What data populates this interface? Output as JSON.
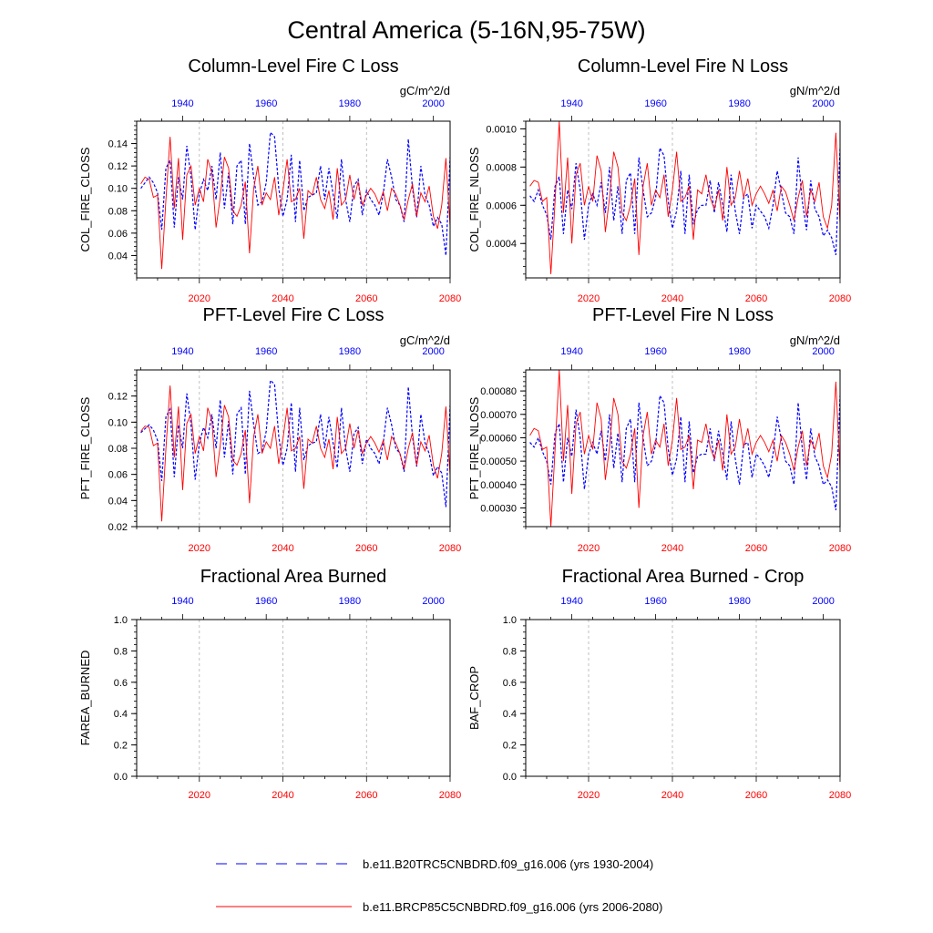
{
  "figure_title": "Central America (5-16N,95-75W)",
  "legend": [
    {
      "label": "b.e11.B20TRC5CNBDRD.f09_g16.006 (yrs 1930-2004)",
      "color": "#0000ff",
      "style": "dashed"
    },
    {
      "label": "b.e11.BRCP85C5CNBDRD.f09_g16.006 (yrs 2006-2080)",
      "color": "#ff0000",
      "style": "solid"
    }
  ],
  "chart_data": [
    {
      "type": "line",
      "title": "Column-Level Fire C Loss",
      "ylabel": "COL_FIRE_CLOSS",
      "units": "gC/m^2/d",
      "bottom_axis": {
        "range": [
          2005,
          2080
        ],
        "ticks": [
          "2020",
          "2040",
          "2060",
          "2080"
        ],
        "color": "#ff0000"
      },
      "top_axis": {
        "range": [
          1929,
          2004
        ],
        "ticks": [
          "1940",
          "1960",
          "1980",
          "2000"
        ],
        "color": "#0000ff"
      },
      "ylim": [
        0.02,
        0.16
      ],
      "yticks": [
        "0.04",
        "0.06",
        "0.08",
        "0.10",
        "0.12",
        "0.14"
      ],
      "series": [
        {
          "name": "b.e11.B20TRC5CNBDRD.f09_g16.006",
          "color": "#0000ff",
          "dash": true,
          "start": 1930,
          "values": [
            0.1,
            0.105,
            0.11,
            0.105,
            0.096,
            0.063,
            0.118,
            0.125,
            0.065,
            0.11,
            0.09,
            0.138,
            0.11,
            0.063,
            0.095,
            0.108,
            0.098,
            0.12,
            0.09,
            0.132,
            0.082,
            0.114,
            0.068,
            0.12,
            0.125,
            0.068,
            0.14,
            0.11,
            0.085,
            0.088,
            0.105,
            0.15,
            0.146,
            0.1,
            0.075,
            0.09,
            0.13,
            0.07,
            0.125,
            0.08,
            0.092,
            0.094,
            0.096,
            0.12,
            0.09,
            0.118,
            0.095,
            0.073,
            0.126,
            0.09,
            0.07,
            0.102,
            0.108,
            0.076,
            0.098,
            0.09,
            0.085,
            0.076,
            0.095,
            0.126,
            0.11,
            0.09,
            0.085,
            0.07,
            0.144,
            0.1,
            0.074,
            0.12,
            0.094,
            0.085,
            0.066,
            0.074,
            0.068,
            0.04,
            0.128
          ]
        },
        {
          "name": "b.e11.BRCP85C5CNBDRD.f09_g16.006",
          "color": "#ff0000",
          "dash": false,
          "start": 2006,
          "values": [
            0.104,
            0.11,
            0.108,
            0.092,
            0.094,
            0.028,
            0.09,
            0.146,
            0.082,
            0.127,
            0.054,
            0.112,
            0.12,
            0.085,
            0.1,
            0.088,
            0.126,
            0.114,
            0.065,
            0.092,
            0.128,
            0.118,
            0.08,
            0.075,
            0.085,
            0.106,
            0.042,
            0.1,
            0.12,
            0.085,
            0.096,
            0.09,
            0.11,
            0.076,
            0.098,
            0.126,
            0.088,
            0.09,
            0.1,
            0.055,
            0.098,
            0.094,
            0.11,
            0.09,
            0.082,
            0.098,
            0.072,
            0.118,
            0.085,
            0.09,
            0.112,
            0.09,
            0.106,
            0.085,
            0.094,
            0.1,
            0.095,
            0.086,
            0.097,
            0.08,
            0.1,
            0.095,
            0.085,
            0.072,
            0.09,
            0.104,
            0.075,
            0.096,
            0.088,
            0.102,
            0.075,
            0.064,
            0.085,
            0.127,
            0.066
          ]
        }
      ]
    },
    {
      "type": "line",
      "title": "Column-Level Fire N Loss",
      "ylabel": "COL_FIRE_NLOSS",
      "units": "gN/m^2/d",
      "bottom_axis": {
        "range": [
          2005,
          2080
        ],
        "ticks": [
          "2020",
          "2040",
          "2060",
          "2080"
        ],
        "color": "#ff0000"
      },
      "top_axis": {
        "range": [
          1929,
          2004
        ],
        "ticks": [
          "1940",
          "1960",
          "1980",
          "2000"
        ],
        "color": "#0000ff"
      },
      "ylim": [
        0.00022,
        0.00104
      ],
      "yticks": [
        "0.0004",
        "0.0006",
        "0.0008",
        "0.0010"
      ],
      "series": [
        {
          "name": "b.e11.B20TRC5CNBDRD.f09_g16.006",
          "color": "#0000ff",
          "dash": true,
          "start": 1930,
          "values": [
            0.00065,
            0.00062,
            0.00068,
            0.0006,
            0.00055,
            0.00042,
            0.0007,
            0.00075,
            0.00045,
            0.00068,
            0.00058,
            0.00082,
            0.00068,
            0.00042,
            0.0006,
            0.00066,
            0.0006,
            0.00072,
            0.00056,
            0.0008,
            0.00052,
            0.0007,
            0.00045,
            0.00073,
            0.00077,
            0.00045,
            0.00085,
            0.00068,
            0.00054,
            0.00056,
            0.00064,
            0.0009,
            0.00086,
            0.00062,
            0.00048,
            0.00057,
            0.00078,
            0.00045,
            0.00076,
            0.0005,
            0.00058,
            0.0006,
            0.0006,
            0.00073,
            0.00056,
            0.00072,
            0.0006,
            0.00046,
            0.00076,
            0.00057,
            0.00045,
            0.00064,
            0.00066,
            0.00048,
            0.0006,
            0.00057,
            0.00054,
            0.00048,
            0.0006,
            0.00078,
            0.00067,
            0.00056,
            0.00054,
            0.00045,
            0.00085,
            0.00062,
            0.00047,
            0.00073,
            0.00058,
            0.00054,
            0.00044,
            0.00047,
            0.00043,
            0.00034,
            0.0009
          ]
        },
        {
          "name": "b.e11.BRCP85C5CNBDRD.f09_g16.006",
          "color": "#ff0000",
          "dash": false,
          "start": 2006,
          "values": [
            0.0007,
            0.00073,
            0.00072,
            0.00062,
            0.00064,
            0.00024,
            0.00062,
            0.00104,
            0.00056,
            0.00085,
            0.0004,
            0.00076,
            0.00082,
            0.0006,
            0.0007,
            0.00062,
            0.00086,
            0.00078,
            0.00046,
            0.00064,
            0.00088,
            0.0008,
            0.00056,
            0.00052,
            0.0006,
            0.00074,
            0.00034,
            0.0007,
            0.00082,
            0.0006,
            0.00068,
            0.00064,
            0.00076,
            0.00054,
            0.00068,
            0.00088,
            0.00062,
            0.00064,
            0.0007,
            0.00042,
            0.00068,
            0.00066,
            0.00076,
            0.00064,
            0.00058,
            0.00068,
            0.00052,
            0.0008,
            0.0006,
            0.00064,
            0.00078,
            0.00064,
            0.00074,
            0.0006,
            0.00066,
            0.0007,
            0.00066,
            0.00061,
            0.00068,
            0.00057,
            0.0007,
            0.00067,
            0.0006,
            0.00052,
            0.00064,
            0.00073,
            0.00054,
            0.00068,
            0.00062,
            0.00072,
            0.00054,
            0.00048,
            0.0006,
            0.00098,
            0.0005
          ]
        }
      ]
    },
    {
      "type": "line",
      "title": "PFT-Level Fire C Loss",
      "ylabel": "PFT_FIRE_CLOSS",
      "units": "gC/m^2/d",
      "bottom_axis": {
        "range": [
          2005,
          2080
        ],
        "ticks": [
          "2020",
          "2040",
          "2060",
          "2080"
        ],
        "color": "#ff0000"
      },
      "top_axis": {
        "range": [
          1929,
          2004
        ],
        "ticks": [
          "1940",
          "1960",
          "1980",
          "2000"
        ],
        "color": "#0000ff"
      },
      "ylim": [
        0.02,
        0.14
      ],
      "yticks": [
        "0.02",
        "0.04",
        "0.06",
        "0.08",
        "0.10",
        "0.12"
      ],
      "series": [
        {
          "name": "b.e11.B20TRC5CNBDRD.f09_g16.006",
          "color": "#0000ff",
          "dash": true,
          "start": 1930,
          "values": [
            0.092,
            0.095,
            0.098,
            0.094,
            0.086,
            0.055,
            0.104,
            0.11,
            0.058,
            0.098,
            0.08,
            0.122,
            0.098,
            0.056,
            0.084,
            0.096,
            0.088,
            0.106,
            0.08,
            0.117,
            0.073,
            0.101,
            0.06,
            0.106,
            0.111,
            0.06,
            0.124,
            0.098,
            0.076,
            0.078,
            0.093,
            0.132,
            0.129,
            0.089,
            0.067,
            0.08,
            0.115,
            0.062,
            0.111,
            0.071,
            0.082,
            0.084,
            0.085,
            0.106,
            0.08,
            0.104,
            0.084,
            0.065,
            0.111,
            0.08,
            0.062,
            0.091,
            0.096,
            0.068,
            0.087,
            0.08,
            0.076,
            0.068,
            0.084,
            0.111,
            0.098,
            0.08,
            0.076,
            0.062,
            0.127,
            0.089,
            0.066,
            0.106,
            0.084,
            0.076,
            0.059,
            0.066,
            0.061,
            0.035,
            0.113
          ]
        },
        {
          "name": "b.e11.BRCP85C5CNBDRD.f09_g16.006",
          "color": "#ff0000",
          "dash": false,
          "start": 2006,
          "values": [
            0.093,
            0.097,
            0.096,
            0.082,
            0.084,
            0.024,
            0.08,
            0.128,
            0.073,
            0.112,
            0.048,
            0.099,
            0.106,
            0.076,
            0.089,
            0.078,
            0.111,
            0.101,
            0.058,
            0.082,
            0.113,
            0.104,
            0.071,
            0.067,
            0.076,
            0.094,
            0.038,
            0.089,
            0.106,
            0.076,
            0.085,
            0.08,
            0.097,
            0.068,
            0.087,
            0.111,
            0.078,
            0.08,
            0.089,
            0.049,
            0.087,
            0.084,
            0.097,
            0.08,
            0.073,
            0.087,
            0.064,
            0.104,
            0.076,
            0.08,
            0.099,
            0.08,
            0.094,
            0.076,
            0.084,
            0.089,
            0.084,
            0.077,
            0.086,
            0.071,
            0.089,
            0.084,
            0.076,
            0.064,
            0.08,
            0.092,
            0.067,
            0.085,
            0.078,
            0.09,
            0.067,
            0.057,
            0.076,
            0.112,
            0.059
          ]
        }
      ]
    },
    {
      "type": "line",
      "title": "PFT-Level Fire N Loss",
      "ylabel": "PFT_FIRE_NLOSS",
      "units": "gN/m^2/d",
      "bottom_axis": {
        "range": [
          2005,
          2080
        ],
        "ticks": [
          "2020",
          "2040",
          "2060",
          "2080"
        ],
        "color": "#ff0000"
      },
      "top_axis": {
        "range": [
          1929,
          2004
        ],
        "ticks": [
          "1940",
          "1960",
          "1980",
          "2000"
        ],
        "color": "#0000ff"
      },
      "ylim": [
        0.00022,
        0.00089
      ],
      "yticks": [
        "0.00030",
        "0.00040",
        "0.00050",
        "0.00060",
        "0.00070",
        "0.00080"
      ],
      "series": [
        {
          "name": "b.e11.B20TRC5CNBDRD.f09_g16.006",
          "color": "#0000ff",
          "dash": true,
          "start": 1930,
          "values": [
            0.00058,
            0.00056,
            0.0006,
            0.00054,
            0.0005,
            0.0004,
            0.00062,
            0.00066,
            0.00041,
            0.0006,
            0.00052,
            0.00072,
            0.0006,
            0.00038,
            0.00053,
            0.00058,
            0.00053,
            0.00063,
            0.0005,
            0.0007,
            0.00047,
            0.00062,
            0.00041,
            0.00064,
            0.00068,
            0.00041,
            0.00075,
            0.0006,
            0.00048,
            0.0005,
            0.00057,
            0.00078,
            0.00075,
            0.00055,
            0.00044,
            0.00051,
            0.00069,
            0.00041,
            0.00067,
            0.00045,
            0.00052,
            0.00053,
            0.00053,
            0.00064,
            0.0005,
            0.00063,
            0.00053,
            0.00042,
            0.00067,
            0.00051,
            0.0004,
            0.00057,
            0.00058,
            0.00043,
            0.00053,
            0.00051,
            0.00048,
            0.00043,
            0.00053,
            0.00069,
            0.00059,
            0.0005,
            0.00048,
            0.0004,
            0.00075,
            0.00055,
            0.00042,
            0.00064,
            0.00052,
            0.00048,
            0.0004,
            0.00042,
            0.00039,
            0.00029,
            0.00078
          ]
        },
        {
          "name": "b.e11.BRCP85C5CNBDRD.f09_g16.006",
          "color": "#ff0000",
          "dash": false,
          "start": 2006,
          "values": [
            0.00061,
            0.00064,
            0.00063,
            0.00055,
            0.00056,
            0.00022,
            0.00055,
            0.00089,
            0.0005,
            0.00074,
            0.00036,
            0.00066,
            0.00071,
            0.00053,
            0.00061,
            0.00055,
            0.00075,
            0.00068,
            0.00042,
            0.00056,
            0.00077,
            0.0007,
            0.0005,
            0.00047,
            0.00053,
            0.00064,
            0.0003,
            0.00061,
            0.00071,
            0.00053,
            0.00059,
            0.00056,
            0.00066,
            0.00048,
            0.00059,
            0.00077,
            0.00055,
            0.00056,
            0.00061,
            0.00038,
            0.00059,
            0.00058,
            0.00066,
            0.00056,
            0.00051,
            0.00059,
            0.00046,
            0.0007,
            0.00053,
            0.00056,
            0.00068,
            0.00056,
            0.00064,
            0.00053,
            0.00058,
            0.00061,
            0.00058,
            0.00054,
            0.00059,
            0.0005,
            0.00061,
            0.00058,
            0.00053,
            0.00046,
            0.00056,
            0.00063,
            0.00048,
            0.00059,
            0.00055,
            0.00062,
            0.00048,
            0.00043,
            0.00053,
            0.00084,
            0.00045
          ]
        }
      ]
    },
    {
      "type": "line",
      "title": "Fractional Area Burned",
      "ylabel": "FAREA_BURNED",
      "units": "",
      "bottom_axis": {
        "range": [
          2005,
          2080
        ],
        "ticks": [
          "2020",
          "2040",
          "2060",
          "2080"
        ],
        "color": "#ff0000"
      },
      "top_axis": {
        "range": [
          1929,
          2004
        ],
        "ticks": [
          "1940",
          "1960",
          "1980",
          "2000"
        ],
        "color": "#0000ff"
      },
      "ylim": [
        0.0,
        1.0
      ],
      "yticks": [
        "0.0",
        "0.2",
        "0.4",
        "0.6",
        "0.8",
        "1.0"
      ],
      "series": []
    },
    {
      "type": "line",
      "title": "Fractional Area Burned - Crop",
      "ylabel": "BAF_CROP",
      "units": "",
      "bottom_axis": {
        "range": [
          2005,
          2080
        ],
        "ticks": [
          "2020",
          "2040",
          "2060",
          "2080"
        ],
        "color": "#ff0000"
      },
      "top_axis": {
        "range": [
          1929,
          2004
        ],
        "ticks": [
          "1940",
          "1960",
          "1980",
          "2000"
        ],
        "color": "#0000ff"
      },
      "ylim": [
        0.0,
        1.0
      ],
      "yticks": [
        "0.0",
        "0.2",
        "0.4",
        "0.6",
        "0.8",
        "1.0"
      ],
      "series": []
    }
  ]
}
